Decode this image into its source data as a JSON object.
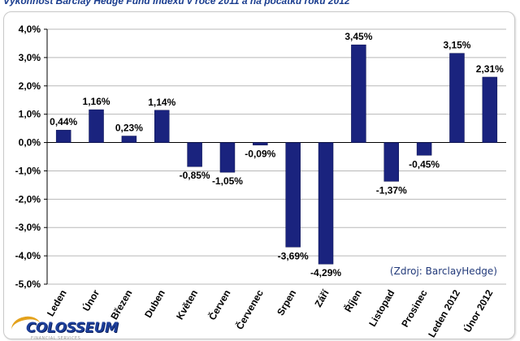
{
  "header": {
    "title": "Výkonnost Barclay Hedge Fund Indexu v roce 2011 a na počátku roku 2012"
  },
  "source_note": "(Zdroj: BarclayHedge)",
  "logo": {
    "text": "COLOSSEUM",
    "subtext": "FINANCIAL SERVICES"
  },
  "colors": {
    "bar": "#1a237e",
    "grid": "#b8b8b8",
    "axis": "#000000",
    "text": "#000000"
  },
  "chart_data": {
    "type": "bar",
    "title": "",
    "xlabel": "",
    "ylabel": "",
    "categories": [
      "Leden",
      "Únor",
      "Březen",
      "Duben",
      "Květen",
      "Červen",
      "Červenec",
      "Srpen",
      "Září",
      "Říjen",
      "Listopad",
      "Prosinec",
      "Leden 2012",
      "Únor 2012"
    ],
    "values": [
      0.44,
      1.16,
      0.23,
      1.14,
      -0.85,
      -1.05,
      -0.09,
      -3.69,
      -4.29,
      3.45,
      -1.37,
      -0.45,
      3.15,
      2.31
    ],
    "data_labels": [
      "0,44%",
      "1,16%",
      "0,23%",
      "1,14%",
      "-0,85%",
      "-1,05%",
      "-0,09%",
      "-3,69%",
      "-4,29%",
      "3,45%",
      "-1,37%",
      "-0,45%",
      "3,15%",
      "2,31%"
    ],
    "y_ticks": [
      4,
      3,
      2,
      1,
      0,
      -1,
      -2,
      -3,
      -4,
      -5
    ],
    "y_tick_labels": [
      "4,0%",
      "3,0%",
      "2,0%",
      "1,0%",
      "0,0%",
      "-1,0%",
      "-2,0%",
      "-3,0%",
      "-4,0%",
      "-5,0%"
    ],
    "ylim": [
      -5,
      4
    ],
    "grid": true,
    "legend": "none"
  }
}
